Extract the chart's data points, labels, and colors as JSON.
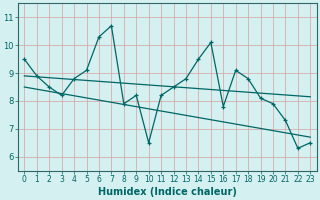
{
  "xlabel": "Humidex (Indice chaleur)",
  "bg_color": "#d4f0f0",
  "grid_color": "#c0dede",
  "line_color": "#006666",
  "spine_color": "#336666",
  "xlim": [
    -0.5,
    23.5
  ],
  "ylim": [
    5.5,
    11.5
  ],
  "yticks": [
    6,
    7,
    8,
    9,
    10,
    11
  ],
  "xticks": [
    0,
    1,
    2,
    3,
    4,
    5,
    6,
    7,
    8,
    9,
    10,
    11,
    12,
    13,
    14,
    15,
    16,
    17,
    18,
    19,
    20,
    21,
    22,
    23
  ],
  "series1_x": [
    0,
    1,
    2,
    3,
    4,
    5,
    6,
    7,
    8,
    9,
    10,
    11,
    12,
    13,
    14,
    15,
    16,
    17,
    18,
    19,
    20,
    21,
    22,
    23
  ],
  "series1_y": [
    9.5,
    8.9,
    8.5,
    8.2,
    8.8,
    9.1,
    10.3,
    10.7,
    7.9,
    8.2,
    6.5,
    8.2,
    8.5,
    8.8,
    9.5,
    10.1,
    7.8,
    9.1,
    8.8,
    8.1,
    7.9,
    7.3,
    6.3,
    6.5
  ],
  "trend1_x": [
    0,
    23
  ],
  "trend1_y": [
    8.9,
    8.15
  ],
  "trend2_x": [
    0,
    23
  ],
  "trend2_y": [
    8.5,
    6.7
  ],
  "xlabel_fontsize": 7,
  "tick_fontsize": 5.5
}
